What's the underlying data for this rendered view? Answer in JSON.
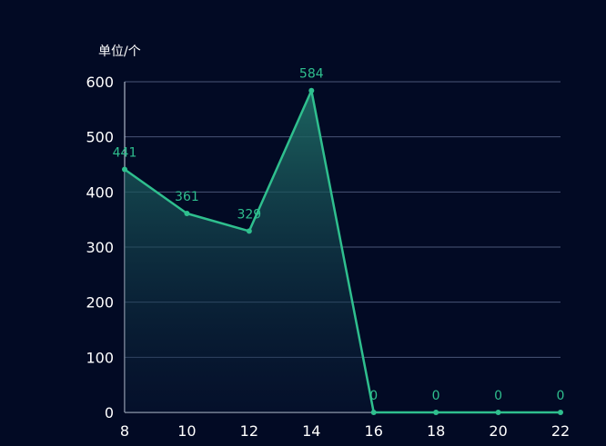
{
  "chart_data": {
    "type": "area",
    "title": "",
    "unit_label": "单位/个",
    "xlabel": "",
    "ylabel": "单位/个",
    "x": [
      8,
      10,
      12,
      14,
      16,
      18,
      20,
      22
    ],
    "series": [
      {
        "values": [
          441,
          361,
          329,
          584,
          0,
          0,
          0,
          0
        ]
      }
    ],
    "data_labels": [
      "441",
      "361",
      "329",
      "584",
      "0",
      "0",
      "0",
      "0"
    ],
    "x_tick_labels": [
      "8",
      "10",
      "12",
      "14",
      "16",
      "18",
      "20",
      "22"
    ],
    "y_ticks": [
      0,
      100,
      200,
      300,
      400,
      500,
      600
    ],
    "y_tick_labels": [
      "0",
      "100",
      "200",
      "300",
      "400",
      "500",
      "600"
    ],
    "xlim": [
      8,
      22
    ],
    "ylim": [
      0,
      600
    ],
    "grid": true,
    "legend": "none",
    "colors": {
      "background": "#020a24",
      "line": "#2fbf8e",
      "area_top": "#1f6e66",
      "area_bottom": "#0b1e3a",
      "grid": "#4a5577",
      "axis": "#cfd6e6",
      "label": "#2fbf8e",
      "tick": "#ffffff"
    }
  }
}
